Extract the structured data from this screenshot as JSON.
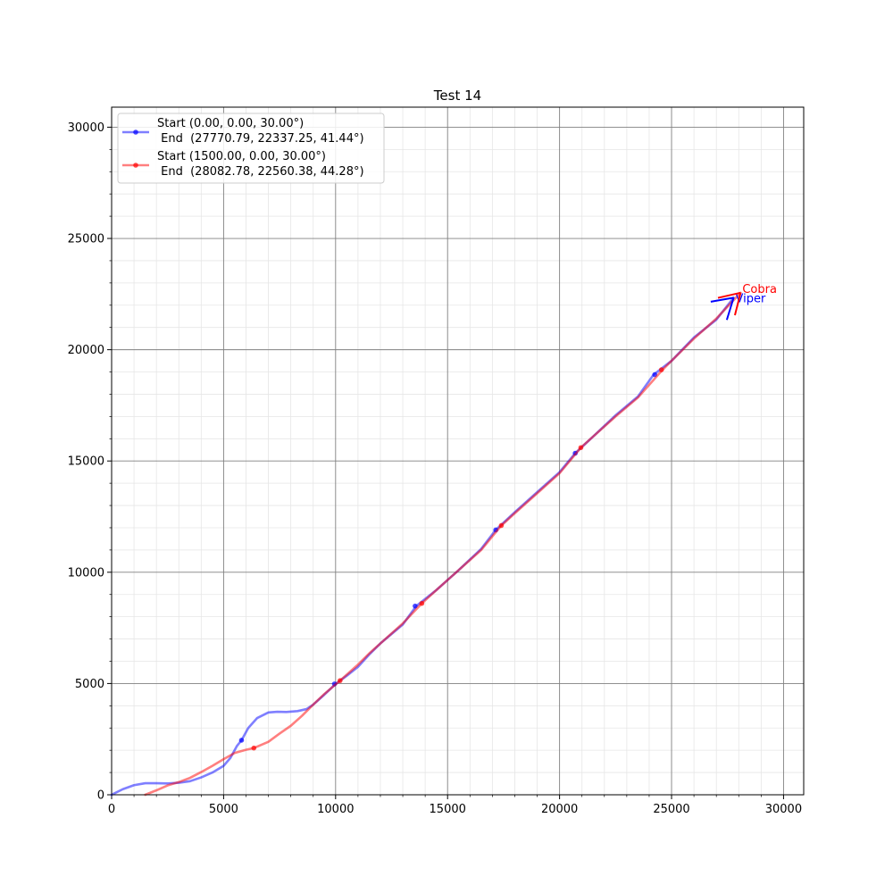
{
  "chart_data": {
    "type": "line",
    "title": "Test 14",
    "xlabel": "",
    "ylabel": "",
    "xlim": [
      0,
      30900
    ],
    "ylim": [
      0,
      30900
    ],
    "xticks": [
      0,
      5000,
      10000,
      15000,
      20000,
      25000,
      30000
    ],
    "yticks": [
      0,
      5000,
      10000,
      15000,
      20000,
      25000,
      30000
    ],
    "x_tick_labels": [
      "0",
      "5000",
      "10000",
      "15000",
      "20000",
      "25000",
      "30000"
    ],
    "y_tick_labels": [
      "0",
      "5000",
      "10000",
      "15000",
      "20000",
      "25000",
      "30000"
    ],
    "grid": true,
    "minor_grid": true,
    "legend_position": "top-left",
    "series": [
      {
        "color": "#0000ff",
        "legend_label_line1": "Start (0.00, 0.00, 30.00°)",
        "legend_label_line2": " End  (27770.79, 22337.25, 41.44°)",
        "annotation": "Viper",
        "end_heading_deg": 41.44,
        "points": [
          [
            0,
            0
          ],
          [
            500,
            250
          ],
          [
            1000,
            430
          ],
          [
            1500,
            520
          ],
          [
            2000,
            520
          ],
          [
            2500,
            510
          ],
          [
            3000,
            540
          ],
          [
            3500,
            610
          ],
          [
            4000,
            780
          ],
          [
            4500,
            1000
          ],
          [
            5000,
            1300
          ],
          [
            5300,
            1650
          ],
          [
            5600,
            2200
          ],
          [
            5800,
            2450
          ],
          [
            6100,
            3000
          ],
          [
            6500,
            3450
          ],
          [
            7000,
            3700
          ],
          [
            7400,
            3730
          ],
          [
            7800,
            3720
          ],
          [
            8300,
            3760
          ],
          [
            8700,
            3850
          ],
          [
            9000,
            4050
          ],
          [
            9500,
            4500
          ],
          [
            10000,
            4980
          ],
          [
            10500,
            5350
          ],
          [
            11000,
            5750
          ],
          [
            11500,
            6300
          ],
          [
            12000,
            6800
          ],
          [
            13000,
            7650
          ],
          [
            13600,
            8480
          ],
          [
            14500,
            9200
          ],
          [
            15500,
            10100
          ],
          [
            16500,
            11050
          ],
          [
            17150,
            11900
          ],
          [
            18000,
            12700
          ],
          [
            19000,
            13600
          ],
          [
            20000,
            14500
          ],
          [
            20700,
            15350
          ],
          [
            21500,
            16100
          ],
          [
            22500,
            17050
          ],
          [
            23500,
            17900
          ],
          [
            24200,
            18880
          ],
          [
            25000,
            19500
          ],
          [
            26000,
            20550
          ],
          [
            27000,
            21350
          ],
          [
            27770.79,
            22337.25
          ]
        ],
        "markers": [
          [
            5800,
            2450
          ],
          [
            9950,
            4980
          ],
          [
            13550,
            8480
          ],
          [
            17150,
            11900
          ],
          [
            20700,
            15350
          ],
          [
            24250,
            18880
          ]
        ]
      },
      {
        "color": "#ff0000",
        "legend_label_line1": "Start (1500.00, 0.00, 30.00°)",
        "legend_label_line2": " End  (28082.78, 22560.38, 44.28°)",
        "annotation": "Cobra",
        "end_heading_deg": 44.28,
        "points": [
          [
            1500,
            0
          ],
          [
            2000,
            200
          ],
          [
            2500,
            420
          ],
          [
            3000,
            570
          ],
          [
            3500,
            760
          ],
          [
            4000,
            1020
          ],
          [
            4500,
            1300
          ],
          [
            5000,
            1600
          ],
          [
            5500,
            1880
          ],
          [
            6000,
            2020
          ],
          [
            6350,
            2100
          ],
          [
            7000,
            2380
          ],
          [
            7500,
            2750
          ],
          [
            8000,
            3100
          ],
          [
            8500,
            3550
          ],
          [
            9000,
            4050
          ],
          [
            9500,
            4530
          ],
          [
            10200,
            5130
          ],
          [
            11000,
            5850
          ],
          [
            11500,
            6350
          ],
          [
            12000,
            6800
          ],
          [
            13000,
            7700
          ],
          [
            13850,
            8600
          ],
          [
            14500,
            9200
          ],
          [
            15500,
            10100
          ],
          [
            16500,
            11000
          ],
          [
            17400,
            12100
          ],
          [
            18000,
            12650
          ],
          [
            19000,
            13550
          ],
          [
            20000,
            14450
          ],
          [
            20950,
            15600
          ],
          [
            21500,
            16100
          ],
          [
            22500,
            17000
          ],
          [
            23500,
            17850
          ],
          [
            24600,
            19100
          ],
          [
            25000,
            19500
          ],
          [
            26000,
            20500
          ],
          [
            27000,
            21400
          ],
          [
            28082.78,
            22560.38
          ]
        ],
        "markers": [
          [
            6350,
            2100
          ],
          [
            10200,
            5130
          ],
          [
            13850,
            8600
          ],
          [
            17400,
            12100
          ],
          [
            20950,
            15600
          ],
          [
            24550,
            19100
          ]
        ]
      }
    ]
  }
}
